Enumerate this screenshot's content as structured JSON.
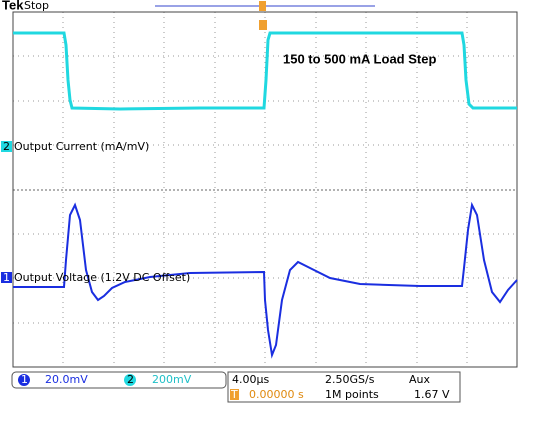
{
  "header": {
    "brand": "Tek",
    "status": "Stop"
  },
  "annotation": "150 to 500 mA Load Step",
  "channels": [
    {
      "number": "2",
      "label": "Output Current (mA/mV)"
    },
    {
      "number": "1",
      "label": "Output Voltage (1.2V DC Offset)"
    }
  ],
  "footer": {
    "ch1_number": "1",
    "ch1_scale": "20.0mV",
    "ch2_number": "2",
    "ch2_scale": "200mV",
    "timebase": "4.00µs",
    "sample_rate": "2.50GS/s",
    "trigger_source": "Aux",
    "trigger_marker": "T",
    "trigger_position": "0.00000 s",
    "record_length": "1M points",
    "trigger_level": "1.67 V"
  }
}
